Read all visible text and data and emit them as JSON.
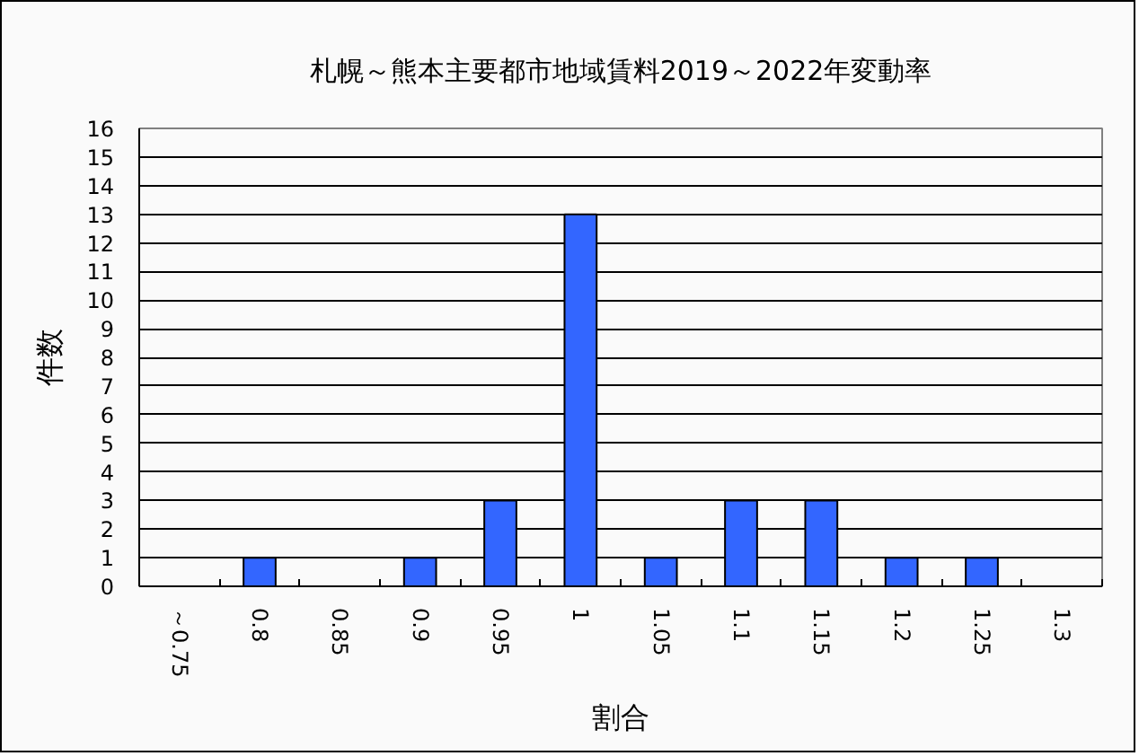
{
  "chart_data": {
    "type": "bar",
    "title": "札幌～熊本主要都市地域賃料2019～2022年変動率",
    "xlabel": "割合",
    "ylabel": "件数",
    "categories": [
      "～0.75",
      "0.8",
      "0.85",
      "0.9",
      "0.95",
      "1",
      "1.05",
      "1.1",
      "1.15",
      "1.2",
      "1.25",
      "1.3"
    ],
    "values": [
      0,
      1,
      0,
      1,
      3,
      13,
      1,
      3,
      3,
      1,
      1,
      0
    ],
    "color": "#3366ff",
    "ylim": [
      0,
      16
    ],
    "yticks": [
      0,
      1,
      2,
      3,
      4,
      5,
      6,
      7,
      8,
      9,
      10,
      11,
      12,
      13,
      14,
      15,
      16
    ],
    "grid": "y"
  }
}
